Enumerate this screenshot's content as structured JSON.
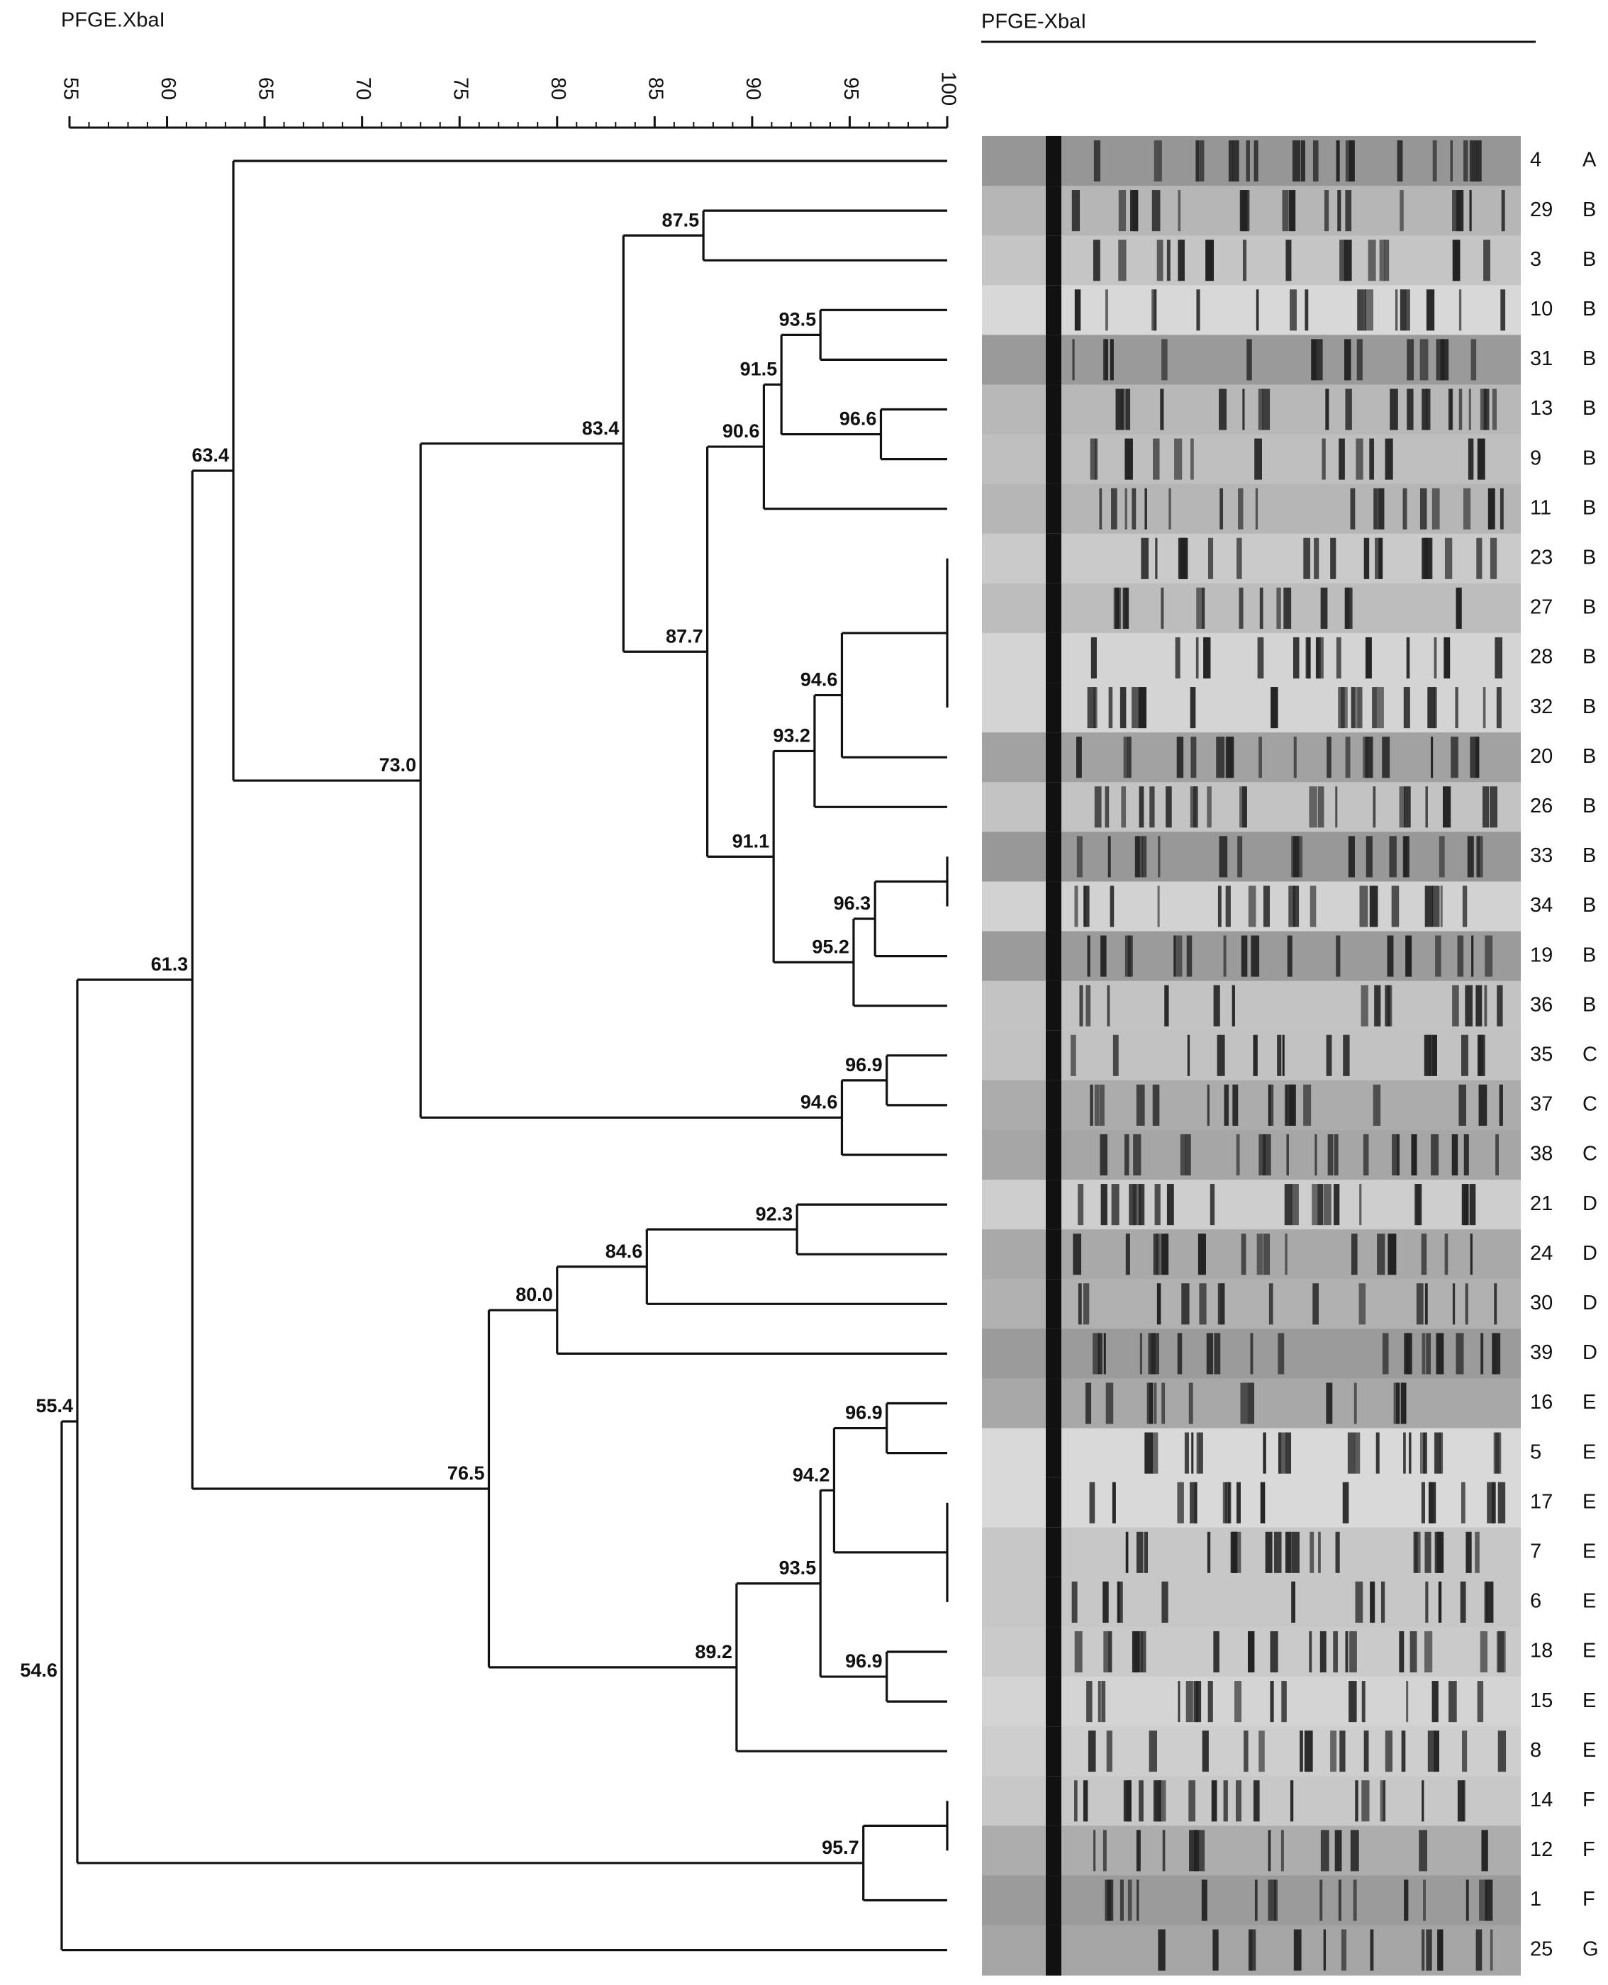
{
  "chart_data": {
    "type": "dendrogram",
    "title": "PFGE.XbaI",
    "gel_title": "PFGE-XbaI",
    "xlim": [
      55,
      100
    ],
    "xticks": [
      55,
      60,
      65,
      70,
      75,
      80,
      85,
      90,
      95,
      100
    ],
    "tree": {
      "value": 54.6,
      "children": [
        {
          "value": 55.4,
          "children": [
            {
              "value": 61.3,
              "children": [
                {
                  "value": 63.4,
                  "children": [
                    {
                      "isolate": "4",
                      "pattern": "A"
                    },
                    {
                      "value": {
                        "value": 73,
                        "label": "73.0"
                      },
                      "children": [
                        {
                          "value": 83.4,
                          "children": [
                            {
                              "value": 87.5,
                              "children": [
                                {
                                  "isolate": "29",
                                  "pattern": "B"
                                },
                                {
                                  "isolate": "3",
                                  "pattern": "B"
                                }
                              ]
                            },
                            {
                              "value": 87.7,
                              "children": [
                                {
                                  "value": 90.6,
                                  "children": [
                                    {
                                      "value": 91.5,
                                      "children": [
                                        {
                                          "value": 93.5,
                                          "children": [
                                            {
                                              "isolate": "10",
                                              "pattern": "B"
                                            },
                                            {
                                              "isolate": "31",
                                              "pattern": "B"
                                            }
                                          ]
                                        },
                                        {
                                          "value": 96.6,
                                          "children": [
                                            {
                                              "isolate": "13",
                                              "pattern": "B"
                                            },
                                            {
                                              "isolate": "9",
                                              "pattern": "B"
                                            }
                                          ]
                                        }
                                      ]
                                    },
                                    {
                                      "isolate": "11",
                                      "pattern": "B"
                                    }
                                  ]
                                },
                                {
                                  "value": 91.1,
                                  "children": [
                                    {
                                      "value": 93.2,
                                      "children": [
                                        {
                                          "value": 94.6,
                                          "children": [
                                            {
                                              "children": [
                                                {
                                                  "isolate": "23",
                                                  "pattern": "B"
                                                },
                                                {
                                                  "isolate": "27",
                                                  "pattern": "B"
                                                },
                                                {
                                                  "isolate": "28",
                                                  "pattern": "B"
                                                },
                                                {
                                                  "isolate": "32",
                                                  "pattern": "B"
                                                }
                                              ]
                                            },
                                            {
                                              "isolate": "20",
                                              "pattern": "B"
                                            }
                                          ]
                                        },
                                        {
                                          "isolate": "26",
                                          "pattern": "B"
                                        }
                                      ]
                                    },
                                    {
                                      "value": 95.2,
                                      "children": [
                                        {
                                          "value": 96.3,
                                          "children": [
                                            {
                                              "children": [
                                                {
                                                  "isolate": "33",
                                                  "pattern": "B"
                                                },
                                                {
                                                  "isolate": "34",
                                                  "pattern": "B"
                                                }
                                              ]
                                            },
                                            {
                                              "isolate": "19",
                                              "pattern": "B"
                                            }
                                          ]
                                        },
                                        {
                                          "isolate": "36",
                                          "pattern": "B"
                                        }
                                      ]
                                    }
                                  ]
                                }
                              ]
                            }
                          ]
                        },
                        {
                          "value": 94.6,
                          "children": [
                            {
                              "value": 96.9,
                              "children": [
                                {
                                  "isolate": "35",
                                  "pattern": "C"
                                },
                                {
                                  "isolate": "37",
                                  "pattern": "C"
                                }
                              ]
                            },
                            {
                              "isolate": "38",
                              "pattern": "C"
                            }
                          ]
                        }
                      ]
                    }
                  ]
                },
                {
                  "value": 76.5,
                  "children": [
                    {
                      "value": {
                        "value": 80,
                        "label": "80.0"
                      },
                      "children": [
                        {
                          "value": 84.6,
                          "children": [
                            {
                              "value": 92.3,
                              "children": [
                                {
                                  "isolate": "21",
                                  "pattern": "D"
                                },
                                {
                                  "isolate": "24",
                                  "pattern": "D"
                                }
                              ]
                            },
                            {
                              "isolate": "30",
                              "pattern": "D"
                            }
                          ]
                        },
                        {
                          "isolate": "39",
                          "pattern": "D"
                        }
                      ]
                    },
                    {
                      "value": 89.2,
                      "children": [
                        {
                          "value": 93.5,
                          "children": [
                            {
                              "value": 94.2,
                              "children": [
                                {
                                  "value": 96.9,
                                  "children": [
                                    {
                                      "isolate": "16",
                                      "pattern": "E"
                                    },
                                    {
                                      "isolate": "5",
                                      "pattern": "E"
                                    }
                                  ]
                                },
                                {
                                  "children": [
                                    {
                                      "isolate": "17",
                                      "pattern": "E"
                                    },
                                    {
                                      "isolate": "7",
                                      "pattern": "E"
                                    },
                                    {
                                      "isolate": "6",
                                      "pattern": "E"
                                    }
                                  ]
                                }
                              ]
                            },
                            {
                              "value": 96.9,
                              "children": [
                                {
                                  "isolate": "18",
                                  "pattern": "E"
                                },
                                {
                                  "isolate": "15",
                                  "pattern": "E"
                                }
                              ]
                            }
                          ]
                        },
                        {
                          "isolate": "8",
                          "pattern": "E"
                        }
                      ]
                    }
                  ]
                }
              ]
            },
            {
              "value": 95.7,
              "children": [
                {
                  "children": [
                    {
                      "isolate": "14",
                      "pattern": "F"
                    },
                    {
                      "isolate": "12",
                      "pattern": "F"
                    }
                  ]
                },
                {
                  "isolate": "1",
                  "pattern": "F"
                }
              ]
            }
          ]
        },
        {
          "isolate": "25",
          "pattern": "G"
        }
      ]
    }
  }
}
